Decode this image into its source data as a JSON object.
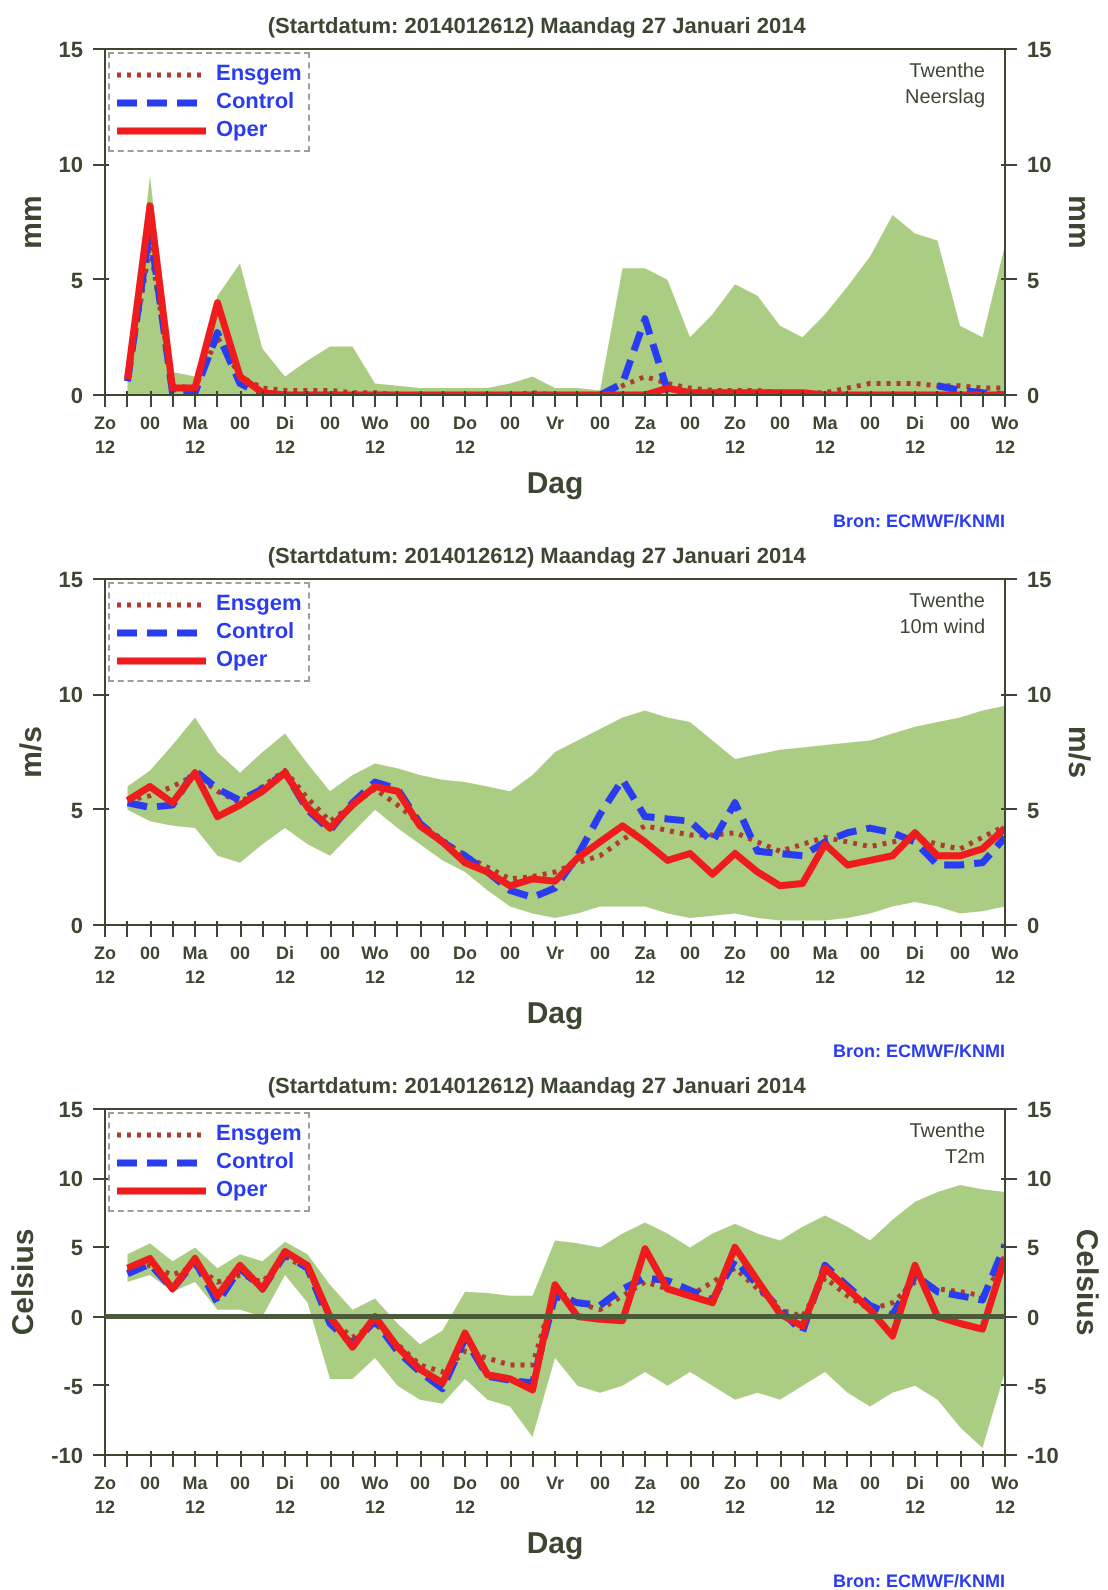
{
  "chart_data": [
    {
      "type": "line",
      "title": "(Startdatum: 2014012612)   Maandag   27 Januari   2014",
      "xlabel": "Dag",
      "ylabel": "mm",
      "y2label": "mm",
      "annotations": [
        "Twenthe\nNeerslag",
        "Bron: ECMWF/KNMI"
      ],
      "categories": [
        "Zo\n12",
        null,
        "00",
        null,
        "Ma\n12",
        null,
        "00",
        null,
        "Di\n12",
        null,
        "00",
        null,
        "Wo\n12",
        null,
        "00",
        null,
        "Do\n12",
        null,
        "00",
        null,
        "Vr",
        null,
        "00",
        null,
        "Za\n12",
        null,
        "00",
        null,
        "Zo\n12",
        null,
        "00",
        null,
        "Ma\n12",
        null,
        "00",
        null,
        "Di\n12",
        null,
        "00",
        null,
        "Wo\n12"
      ],
      "ylim": [
        0,
        15
      ],
      "yticks": [
        0,
        5,
        10,
        15
      ],
      "y2lim": [
        0,
        15
      ],
      "y2ticks": [
        0,
        5,
        10,
        15
      ],
      "grid": false,
      "legend": "top left",
      "marker": "none",
      "series": [
        {
          "name": "Ensgem",
          "color": "#b03a2e",
          "line_style": "dotted",
          "values": [
            null,
            0.6,
            6.5,
            0.4,
            0.3,
            2.5,
            0.8,
            0.3,
            0.2,
            0.2,
            0.2,
            0.1,
            0.1,
            0,
            0,
            0,
            0,
            0,
            0,
            0.1,
            0,
            0,
            0,
            0.4,
            0.8,
            0.5,
            0.3,
            0.2,
            0.2,
            0.2,
            0.1,
            0.1,
            0.1,
            0.3,
            0.5,
            0.5,
            0.5,
            0.4,
            0.4,
            0.3,
            0.3
          ],
          "lower": [
            null,
            0,
            0,
            0,
            0,
            0,
            0,
            0,
            0,
            0,
            0,
            0,
            0,
            0,
            0,
            0,
            0,
            0,
            0,
            0,
            0,
            0,
            0,
            0,
            0,
            0,
            0,
            0,
            0,
            0,
            0,
            0,
            0,
            0,
            0,
            0,
            0,
            0,
            0,
            0,
            0
          ],
          "upper": [
            null,
            1,
            9.5,
            1,
            0.8,
            4.3,
            5.7,
            2,
            0.8,
            1.5,
            2.1,
            2.1,
            0.5,
            0.4,
            0.3,
            0.3,
            0.3,
            0.3,
            0.5,
            0.8,
            0.3,
            0.3,
            0.2,
            5.5,
            5.5,
            5,
            2.5,
            3.5,
            4.8,
            4.3,
            3,
            2.5,
            3.5,
            4.7,
            6,
            7.8,
            7,
            6.7,
            3,
            2.5,
            6.5
          ]
        },
        {
          "name": "Control",
          "color": "#2a3cf0",
          "line_style": "dashed",
          "values": [
            null,
            0.6,
            7.2,
            0.1,
            0.1,
            2.7,
            0.5,
            0,
            null,
            null,
            null,
            null,
            null,
            null,
            null,
            null,
            null,
            null,
            null,
            null,
            null,
            null,
            0,
            0.5,
            3.3,
            0.2,
            0,
            null,
            null,
            null,
            null,
            null,
            null,
            null,
            null,
            null,
            null,
            0.4,
            0.2,
            0.1,
            0
          ]
        },
        {
          "name": "Oper",
          "color": "#ee1c1c",
          "line_style": "solid",
          "values": [
            null,
            0.7,
            8.2,
            0.3,
            0.3,
            4.0,
            0.8,
            0.1,
            0,
            0,
            0,
            0,
            0,
            0,
            0,
            0,
            0,
            0,
            0,
            0,
            0,
            0,
            0,
            0,
            0,
            0.3,
            0.1,
            0.1,
            0.1,
            0.1,
            0.1,
            0.1,
            0,
            0,
            0,
            0,
            0,
            0,
            0,
            0,
            0
          ]
        }
      ]
    },
    {
      "type": "line",
      "title": "(Startdatum: 2014012612)   Maandag   27 Januari   2014",
      "xlabel": "Dag",
      "ylabel": "m/s",
      "y2label": "m/s",
      "annotations": [
        "Twenthe\n10m wind",
        "Bron: ECMWF/KNMI"
      ],
      "categories": [
        "Zo\n12",
        null,
        "00",
        null,
        "Ma\n12",
        null,
        "00",
        null,
        "Di\n12",
        null,
        "00",
        null,
        "Wo\n12",
        null,
        "00",
        null,
        "Do\n12",
        null,
        "00",
        null,
        "Vr",
        null,
        "00",
        null,
        "Za\n12",
        null,
        "00",
        null,
        "Zo\n12",
        null,
        "00",
        null,
        "Ma\n12",
        null,
        "00",
        null,
        "Di\n12",
        null,
        "00",
        null,
        "Wo\n12"
      ],
      "ylim": [
        0,
        15
      ],
      "yticks": [
        0,
        5,
        10,
        15
      ],
      "y2lim": [
        0,
        15
      ],
      "y2ticks": [
        0,
        5,
        10,
        15
      ],
      "grid": false,
      "legend": "top left",
      "marker": "none",
      "series": [
        {
          "name": "Ensgem",
          "color": "#b03a2e",
          "line_style": "dotted",
          "values": [
            null,
            5.4,
            5.6,
            6.0,
            6.5,
            5.8,
            5.3,
            6.0,
            6.7,
            5.5,
            4.5,
            5.2,
            5.9,
            5.2,
            4.4,
            3.7,
            3.0,
            2.5,
            2.0,
            2.1,
            2.3,
            2.7,
            3.0,
            3.7,
            4.3,
            4.1,
            3.9,
            3.9,
            4.0,
            3.6,
            3.2,
            3.5,
            3.8,
            3.6,
            3.4,
            3.6,
            3.8,
            3.5,
            3.3,
            3.8,
            4.3
          ],
          "lower": [
            null,
            5.0,
            4.5,
            4.3,
            4.2,
            3.0,
            2.7,
            3.5,
            4.2,
            3.5,
            3.0,
            4.0,
            5.0,
            4.2,
            3.5,
            2.8,
            2.3,
            1.5,
            0.8,
            0.5,
            0.3,
            0.5,
            0.8,
            0.8,
            0.8,
            0.5,
            0.3,
            0.4,
            0.5,
            0.3,
            0.2,
            0.2,
            0.2,
            0.3,
            0.5,
            0.8,
            1.0,
            0.8,
            0.5,
            0.6,
            0.8
          ],
          "upper": [
            null,
            6,
            6.7,
            7.8,
            9.0,
            7.5,
            6.6,
            7.5,
            8.3,
            7.0,
            5.8,
            6.5,
            7.0,
            6.8,
            6.5,
            6.3,
            6.2,
            6.0,
            5.8,
            6.5,
            7.5,
            8.0,
            8.5,
            9.0,
            9.3,
            9.0,
            8.8,
            8.0,
            7.2,
            7.4,
            7.6,
            7.7,
            7.8,
            7.9,
            8.0,
            8.3,
            8.6,
            8.8,
            9.0,
            9.3,
            9.5
          ]
        },
        {
          "name": "Control",
          "color": "#2a3cf0",
          "line_style": "dashed",
          "values": [
            null,
            5.3,
            5.1,
            5.2,
            6.7,
            5.9,
            5.4,
            5.9,
            6.6,
            5.0,
            4.1,
            5.3,
            6.2,
            5.9,
            4.4,
            3.6,
            3.0,
            2.3,
            1.5,
            1.2,
            1.6,
            3.0,
            4.8,
            6.3,
            4.7,
            4.6,
            4.5,
            3.6,
            5.3,
            3.2,
            3.1,
            3.0,
            3.6,
            4.0,
            4.2,
            4.0,
            3.6,
            2.6,
            2.6,
            2.7,
            3.8
          ]
        },
        {
          "name": "Oper",
          "color": "#ee1c1c",
          "line_style": "solid",
          "values": [
            null,
            5.4,
            6.0,
            5.3,
            6.6,
            4.7,
            5.2,
            5.8,
            6.6,
            5.1,
            4.2,
            5.2,
            6.0,
            5.8,
            4.3,
            3.6,
            2.7,
            2.3,
            1.7,
            2.0,
            1.9,
            2.9,
            3.6,
            4.3,
            3.6,
            2.8,
            3.1,
            2.2,
            3.1,
            2.3,
            1.7,
            1.8,
            3.5,
            2.6,
            2.8,
            3.0,
            4.0,
            3.0,
            3.0,
            3.3,
            4.2
          ]
        }
      ]
    },
    {
      "type": "line",
      "title": "(Startdatum: 2014012612)   Maandag   27 Januari   2014",
      "xlabel": "Dag",
      "ylabel": "Celsius",
      "y2label": "Celsius",
      "annotations": [
        "Twenthe\nT2m",
        "Bron: ECMWF/KNMI"
      ],
      "categories": [
        "Zo\n12",
        null,
        "00",
        null,
        "Ma\n12",
        null,
        "00",
        null,
        "Di\n12",
        null,
        "00",
        null,
        "Wo\n12",
        null,
        "00",
        null,
        "Do\n12",
        null,
        "00",
        null,
        "Vr",
        null,
        "00",
        null,
        "Za\n12",
        null,
        "00",
        null,
        "Zo\n12",
        null,
        "00",
        null,
        "Ma\n12",
        null,
        "00",
        null,
        "Di\n12",
        null,
        "00",
        null,
        "Wo\n12"
      ],
      "ylim": [
        -10,
        15
      ],
      "yticks": [
        -10,
        -5,
        0,
        5,
        10,
        15
      ],
      "y2lim": [
        -10,
        15
      ],
      "y2ticks": [
        -10,
        -5,
        0,
        5,
        10,
        15
      ],
      "grid": false,
      "legend": "top left",
      "marker": "none",
      "ref_lines": [
        {
          "axis": "y",
          "value": 0,
          "color": "#4a5a3a"
        }
      ],
      "series": [
        {
          "name": "Ensgem",
          "color": "#b03a2e",
          "line_style": "dotted",
          "values": [
            null,
            3.3,
            3.7,
            3.0,
            3.7,
            2.5,
            3.0,
            2.5,
            4.3,
            3.5,
            -0.2,
            -1.5,
            -0.5,
            -2.0,
            -3.5,
            -4.0,
            -2.5,
            -3.0,
            -3.5,
            -3.5,
            2.0,
            1.0,
            0.5,
            1.5,
            2.5,
            2.0,
            1.5,
            2.5,
            3.5,
            2.0,
            0.5,
            0,
            2.8,
            1.5,
            0.5,
            1.0,
            2.5,
            2.0,
            1.8,
            1.5,
            4.0
          ],
          "lower": [
            null,
            2.5,
            3.0,
            1.8,
            2.5,
            0.5,
            0.5,
            0.0,
            3.0,
            1.0,
            -4.5,
            -4.5,
            -3.0,
            -5.0,
            -6.0,
            -6.3,
            -4.5,
            -6.0,
            -6.5,
            -8.7,
            -3.0,
            -5.0,
            -5.5,
            -5.0,
            -4.0,
            -5.0,
            -4.0,
            -5.0,
            -6.0,
            -5.5,
            -6.0,
            -5.0,
            -4.0,
            -5.5,
            -6.5,
            -5.5,
            -5.0,
            -6.0,
            -8.0,
            -9.5,
            -4.0
          ],
          "upper": [
            null,
            4.5,
            5.3,
            4.0,
            5.0,
            3.5,
            4.5,
            4.0,
            5.4,
            4.5,
            2.3,
            0.5,
            1.3,
            -0.5,
            -2.0,
            -1.0,
            1.8,
            1.7,
            1.5,
            1.5,
            5.5,
            5.3,
            5.0,
            6.0,
            6.8,
            6.0,
            5.0,
            6.0,
            6.7,
            6.0,
            5.5,
            6.5,
            7.3,
            6.5,
            5.5,
            7.0,
            8.3,
            9.0,
            9.5,
            9.2,
            9.0
          ]
        },
        {
          "name": "Control",
          "color": "#2a3cf0",
          "line_style": "dashed",
          "values": [
            null,
            3.1,
            3.8,
            2.0,
            4.0,
            1.0,
            3.5,
            2.0,
            4.5,
            3.5,
            -0.5,
            -2.0,
            -0.3,
            -2.5,
            -4.0,
            -5.2,
            -1.6,
            -4.3,
            -4.6,
            -4.8,
            1.5,
            1.0,
            0.8,
            2.0,
            2.8,
            2.6,
            1.9,
            1.2,
            4.1,
            2.3,
            0.5,
            -1.1,
            3.7,
            2.2,
            0.8,
            0.1,
            3.0,
            1.8,
            1.5,
            1.2,
            5.2
          ]
        },
        {
          "name": "Oper",
          "color": "#ee1c1c",
          "line_style": "solid",
          "values": [
            null,
            3.5,
            4.2,
            2.0,
            4.2,
            1.5,
            3.7,
            2.0,
            4.7,
            3.7,
            0,
            -2.2,
            0,
            -2.2,
            -3.8,
            -4.8,
            -1.2,
            -4.2,
            -4.5,
            -5.3,
            2.3,
            0.0,
            -0.2,
            -0.3,
            4.9,
            2.0,
            1.5,
            1.0,
            5.0,
            2.6,
            0.2,
            -0.7,
            3.5,
            2.0,
            0.5,
            -1.4,
            3.7,
            0,
            -0.5,
            -0.9,
            4.3
          ]
        }
      ]
    }
  ]
}
